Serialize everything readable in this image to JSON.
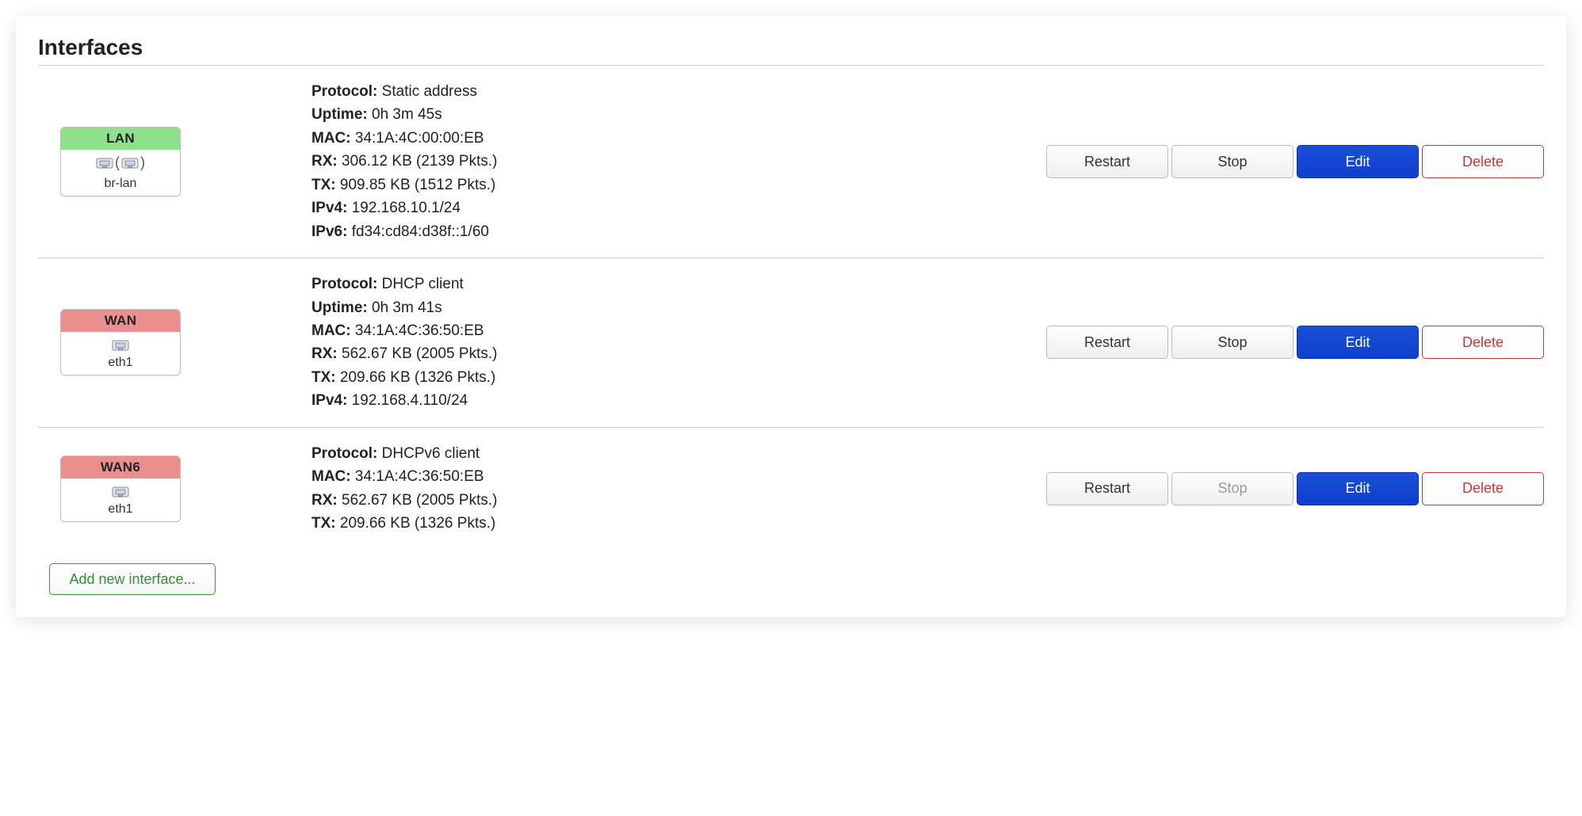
{
  "title": "Interfaces",
  "colors": {
    "zone_lan": "#8ee08a",
    "zone_wan": "#ea8f8f",
    "primary": "#1544cf",
    "danger": "#c23939",
    "add": "#2f8f2f"
  },
  "button_labels": {
    "restart": "Restart",
    "stop": "Stop",
    "edit": "Edit",
    "delete": "Delete",
    "add": "Add new interface..."
  },
  "field_labels": {
    "protocol": "Protocol:",
    "uptime": "Uptime:",
    "mac": "MAC:",
    "rx": "RX:",
    "tx": "TX:",
    "ipv4": "IPv4:",
    "ipv6": "IPv6:"
  },
  "interfaces": [
    {
      "name": "LAN",
      "zone_color": "#8ee08a",
      "device": "br-lan",
      "is_bridge": true,
      "protocol": "Static address",
      "uptime": "0h 3m 45s",
      "mac": "34:1A:4C:00:00:EB",
      "rx": "306.12 KB (2139 Pkts.)",
      "tx": "909.85 KB (1512 Pkts.)",
      "ipv4": "192.168.10.1/24",
      "ipv6": "fd34:cd84:d38f::1/60",
      "stop_disabled": false
    },
    {
      "name": "WAN",
      "zone_color": "#ea8f8f",
      "device": "eth1",
      "is_bridge": false,
      "protocol": "DHCP client",
      "uptime": "0h 3m 41s",
      "mac": "34:1A:4C:36:50:EB",
      "rx": "562.67 KB (2005 Pkts.)",
      "tx": "209.66 KB (1326 Pkts.)",
      "ipv4": "192.168.4.110/24",
      "ipv6": null,
      "stop_disabled": false
    },
    {
      "name": "WAN6",
      "zone_color": "#ea8f8f",
      "device": "eth1",
      "is_bridge": false,
      "protocol": "DHCPv6 client",
      "uptime": null,
      "mac": "34:1A:4C:36:50:EB",
      "rx": "562.67 KB (2005 Pkts.)",
      "tx": "209.66 KB (1326 Pkts.)",
      "ipv4": null,
      "ipv6": null,
      "stop_disabled": true
    }
  ]
}
